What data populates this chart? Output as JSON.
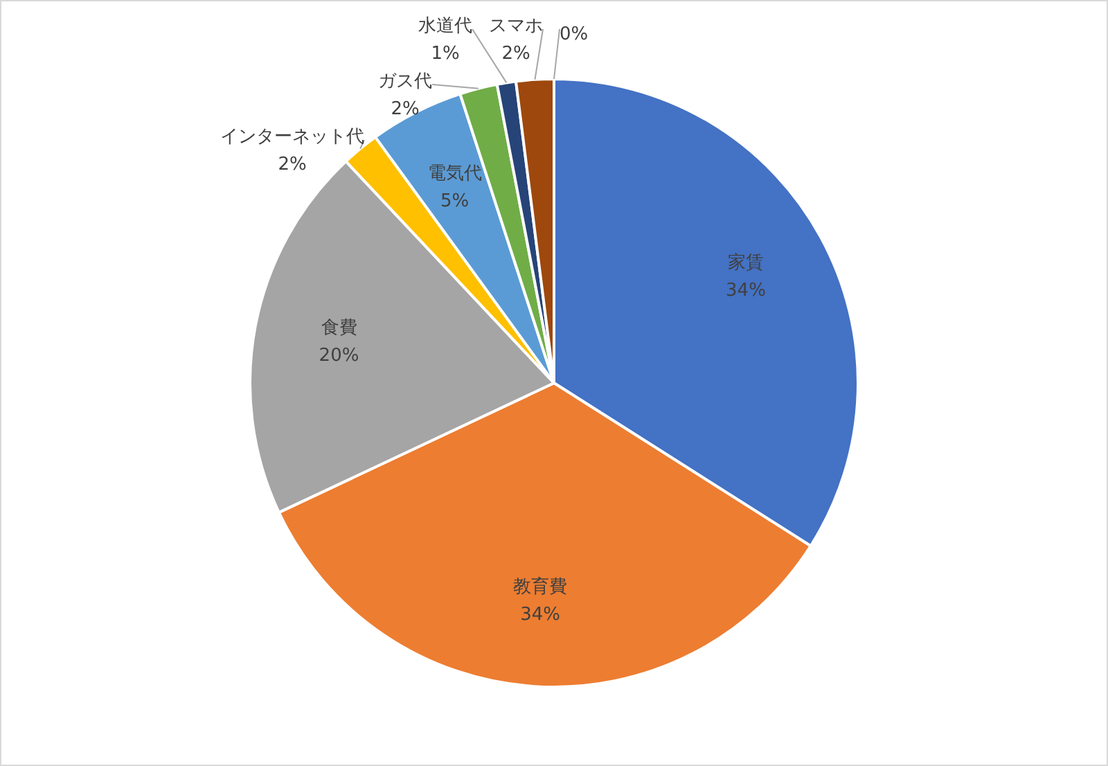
{
  "chart_data": {
    "type": "pie",
    "categories": [
      "家賃",
      "教育費",
      "食費",
      "インターネット代",
      "電気代",
      "ガス代",
      "水道代",
      "スマホ",
      null
    ],
    "values": [
      34,
      34,
      20,
      2,
      5,
      2,
      1,
      2,
      0
    ],
    "colors": [
      "#4472c4",
      "#ed7d31",
      "#a5a5a5",
      "#ffc000",
      "#5b9bd5",
      "#70ad47",
      "#264478",
      "#9e480e",
      "#636363"
    ],
    "value_labels": [
      "34%",
      "34%",
      "20%",
      "2%",
      "5%",
      "2%",
      "1%",
      "2%",
      "0%"
    ],
    "legend": false
  }
}
